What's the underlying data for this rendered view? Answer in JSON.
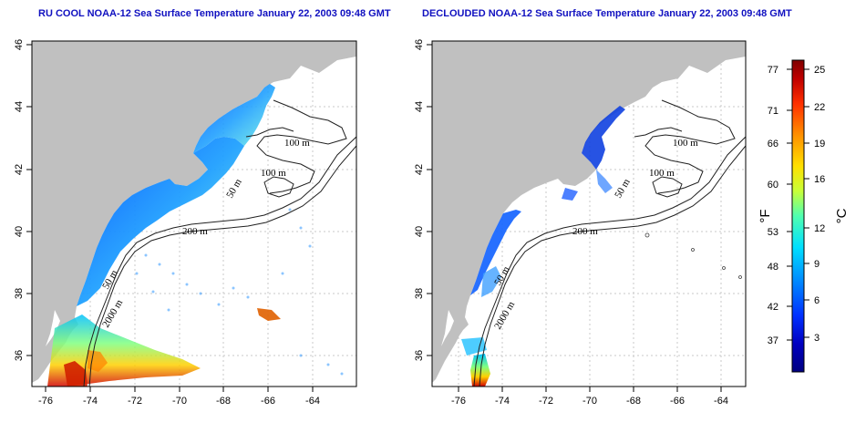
{
  "titles": {
    "left": "RU COOL NOAA-12 Sea Surface Temperature January 22, 2003 09:48 GMT",
    "right": "DECLOUDED NOAA-12 Sea Surface Temperature January 22, 2003 09:48 GMT"
  },
  "axes": {
    "lon_ticks": [
      "-76",
      "-74",
      "-72",
      "-70",
      "-68",
      "-66",
      "-64"
    ],
    "lat_ticks": [
      "36",
      "38",
      "40",
      "42",
      "44",
      "46"
    ]
  },
  "depth_labels_left": [
    "100 m",
    "100 m",
    "50 m",
    "200 m",
    "50 m",
    "2000 m"
  ],
  "depth_labels_right": [
    "100 m",
    "100 m",
    "50 m",
    "200 m",
    "50 m",
    "2000 m"
  ],
  "colorbar": {
    "fahrenheit_ticks": [
      "77",
      "71",
      "66",
      "60",
      "53",
      "48",
      "42",
      "37"
    ],
    "celsius_ticks": [
      "25",
      "22",
      "19",
      "16",
      "12",
      "9",
      "6",
      "3"
    ],
    "fahrenheit_unit": "°F",
    "celsius_unit": "°C",
    "colors": [
      "#7f0000",
      "#c00000",
      "#ff3000",
      "#ff9000",
      "#ffe000",
      "#c8ff38",
      "#50ffb0",
      "#00e0ff",
      "#0090ff",
      "#0030ff",
      "#0000c0",
      "#000080"
    ]
  },
  "colors": {
    "land": "#c0c0c0",
    "ocean": "#ffffff",
    "title": "#1010c0"
  }
}
